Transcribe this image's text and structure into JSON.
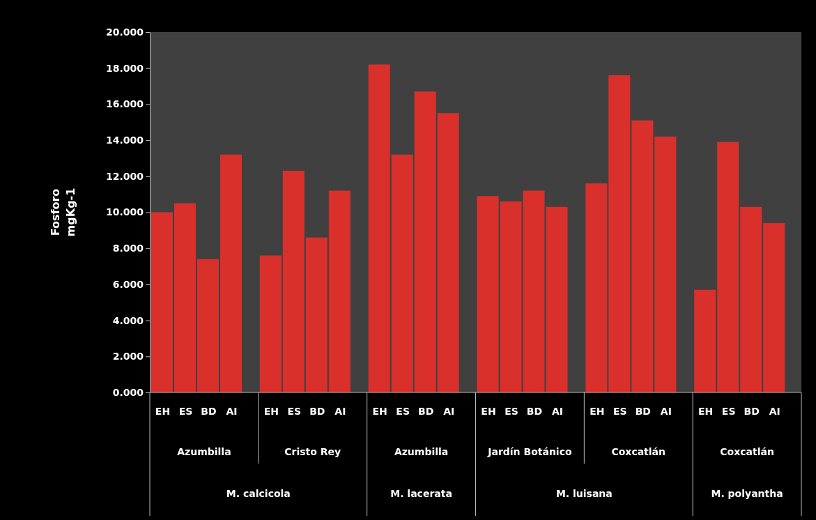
{
  "chart_data": {
    "type": "bar",
    "ylabel": "Fosforo mgKg-1",
    "categories": [
      "EH",
      "ES",
      "BD",
      "AI",
      "EH",
      "ES",
      "BD",
      "AI",
      "EH",
      "ES",
      "BD",
      "AI",
      "EH",
      "ES",
      "BD",
      "AI",
      "EH",
      "ES",
      "BD",
      "AI",
      "EH",
      "ES",
      "BD",
      "AI"
    ],
    "values": [
      10.0,
      10.5,
      7.4,
      13.2,
      7.6,
      12.3,
      8.6,
      11.2,
      18.2,
      13.2,
      16.7,
      15.5,
      10.9,
      10.6,
      11.2,
      10.3,
      11.6,
      17.6,
      15.1,
      14.2,
      5.7,
      13.9,
      10.3,
      9.4
    ],
    "color": "#d9302c",
    "ylim": [
      0,
      20
    ],
    "yticks": [
      {
        "value": 0,
        "label": "0.000"
      },
      {
        "value": 2,
        "label": "2.000"
      },
      {
        "value": 4,
        "label": "4.000"
      },
      {
        "value": 6,
        "label": "6.000"
      },
      {
        "value": 8,
        "label": "8.000"
      },
      {
        "value": 10,
        "label": "10.000"
      },
      {
        "value": 12,
        "label": "12.000"
      },
      {
        "value": 14,
        "label": "14.000"
      },
      {
        "value": 16,
        "label": "16.000"
      },
      {
        "value": 18,
        "label": "18.000"
      },
      {
        "value": 20,
        "label": "20.000"
      }
    ],
    "annotations": [
      "Azumbilla",
      "Cristo Rey",
      "Azumbilla",
      "Jardín Botánico",
      "Coxcatlán",
      "Coxcatlán",
      "M. calcicola",
      "M. lacerata",
      "M. luisana",
      "M. polyantha"
    ]
  }
}
